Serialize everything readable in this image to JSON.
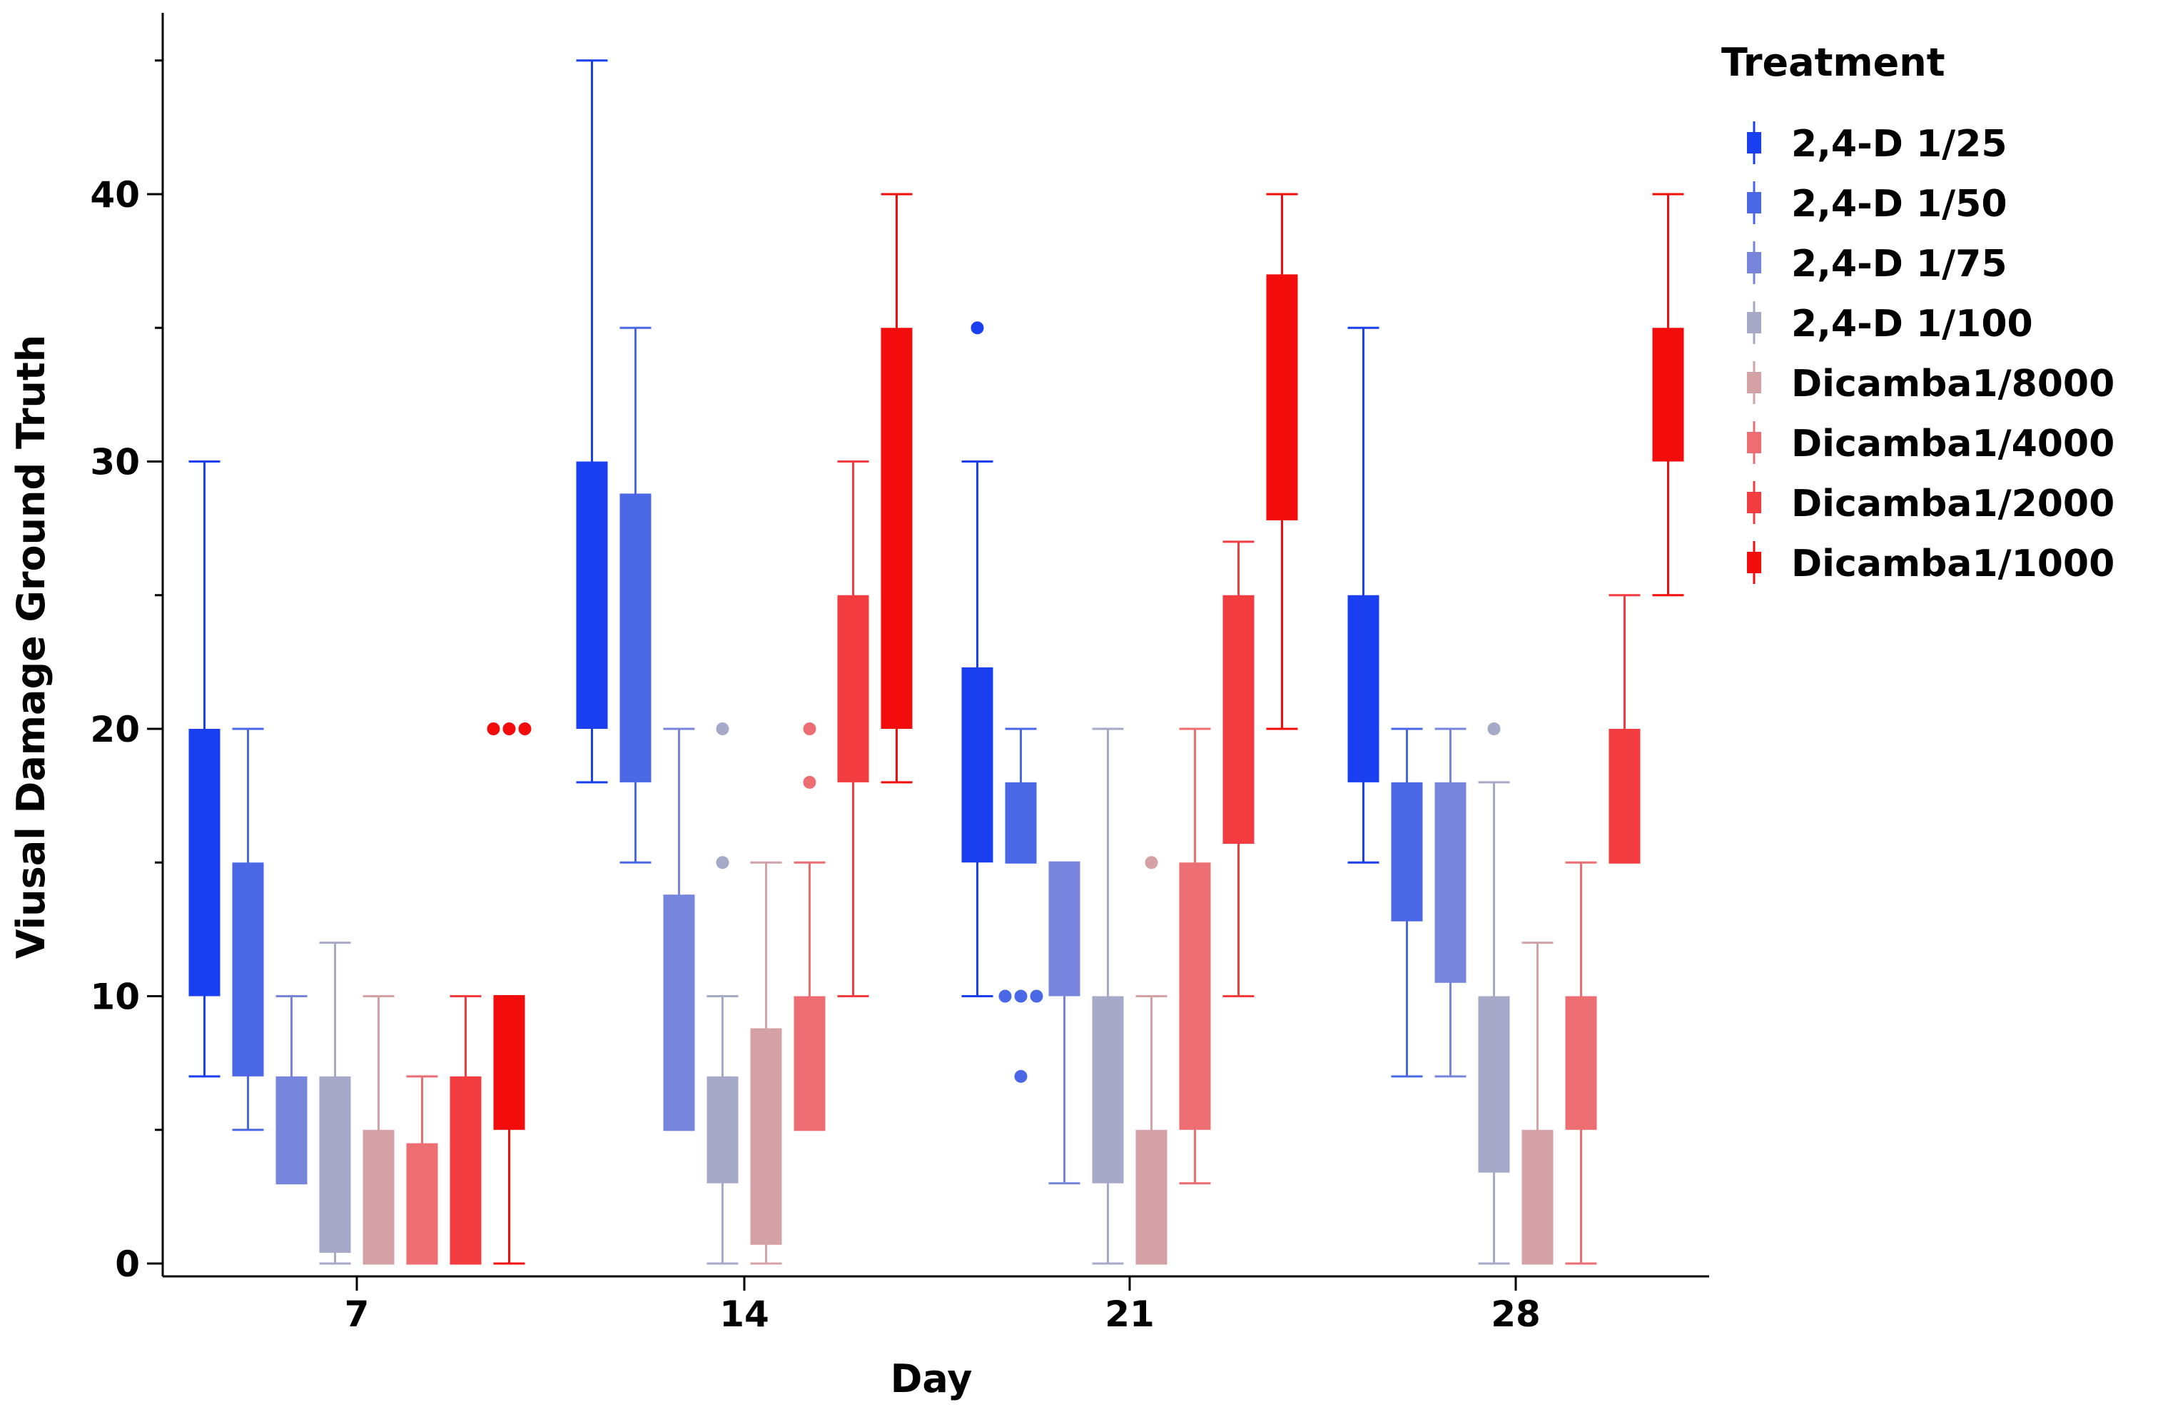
{
  "chart_data": {
    "type": "box",
    "title": "",
    "xlabel": "Day",
    "ylabel": "Viusal Damage Ground Truth",
    "categories": [
      "7",
      "14",
      "21",
      "28"
    ],
    "ylim": [
      -0.5,
      47
    ],
    "yticks": [
      0,
      10,
      20,
      30,
      40
    ],
    "grid": false,
    "legend": {
      "title": "Treatment",
      "position": "right"
    },
    "series": [
      {
        "name": "2,4-D 1/25",
        "color": "#1a3ff0",
        "boxes": [
          {
            "min": 7,
            "q1": 10,
            "q3": 20,
            "max": 30,
            "outliers": []
          },
          {
            "min": 18,
            "q1": 20,
            "q3": 30,
            "max": 45,
            "outliers": []
          },
          {
            "min": 10,
            "q1": 15,
            "q3": 22.3,
            "max": 30,
            "outliers": [
              35
            ]
          },
          {
            "min": 15,
            "q1": 18,
            "q3": 25,
            "max": 35,
            "outliers": []
          }
        ]
      },
      {
        "name": "2,4-D 1/50",
        "color": "#4a68e6",
        "boxes": [
          {
            "min": 5,
            "q1": 7,
            "q3": 15,
            "max": 20,
            "outliers": []
          },
          {
            "min": 15,
            "q1": 18,
            "q3": 28.8,
            "max": 35,
            "outliers": []
          },
          {
            "min": 15,
            "q1": 15,
            "q3": 18,
            "max": 20,
            "outliers": [
              10,
              10,
              10,
              7
            ]
          },
          {
            "min": 7,
            "q1": 12.8,
            "q3": 18,
            "max": 20,
            "outliers": []
          }
        ]
      },
      {
        "name": "2,4-D 1/75",
        "color": "#7786dc",
        "boxes": [
          {
            "min": 3,
            "q1": 3,
            "q3": 7,
            "max": 10,
            "outliers": []
          },
          {
            "min": 5,
            "q1": 5,
            "q3": 13.8,
            "max": 20,
            "outliers": []
          },
          {
            "min": 3,
            "q1": 10,
            "q3": 15,
            "max": 15,
            "outliers": []
          },
          {
            "min": 7,
            "q1": 10.5,
            "q3": 18,
            "max": 20,
            "outliers": []
          }
        ]
      },
      {
        "name": "2,4-D 1/100",
        "color": "#a6aac8",
        "boxes": [
          {
            "min": 0,
            "q1": 0.4,
            "q3": 7,
            "max": 12,
            "outliers": []
          },
          {
            "min": 0,
            "q1": 3,
            "q3": 7,
            "max": 10,
            "outliers": [
              20,
              15
            ]
          },
          {
            "min": 0,
            "q1": 3,
            "q3": 10,
            "max": 20,
            "outliers": []
          },
          {
            "min": 0,
            "q1": 3.4,
            "q3": 10,
            "max": 18,
            "outliers": [
              20
            ]
          }
        ]
      },
      {
        "name": "Dicamba1/8000",
        "color": "#d4a2a6",
        "boxes": [
          {
            "min": 0,
            "q1": 0,
            "q3": 5,
            "max": 10,
            "outliers": []
          },
          {
            "min": 0,
            "q1": 0.7,
            "q3": 8.8,
            "max": 15,
            "outliers": []
          },
          {
            "min": 0,
            "q1": 0,
            "q3": 5,
            "max": 10,
            "outliers": [
              15
            ]
          },
          {
            "min": 0,
            "q1": 0,
            "q3": 5,
            "max": 12,
            "outliers": []
          }
        ]
      },
      {
        "name": "Dicamba1/4000",
        "color": "#ec6e72",
        "boxes": [
          {
            "min": 0,
            "q1": 0,
            "q3": 4.5,
            "max": 7,
            "outliers": []
          },
          {
            "min": 5,
            "q1": 5,
            "q3": 10,
            "max": 15,
            "outliers": [
              20,
              18
            ]
          },
          {
            "min": 3,
            "q1": 5,
            "q3": 15,
            "max": 20,
            "outliers": []
          },
          {
            "min": 0,
            "q1": 5,
            "q3": 10,
            "max": 15,
            "outliers": []
          }
        ]
      },
      {
        "name": "Dicamba1/2000",
        "color": "#f23c40",
        "boxes": [
          {
            "min": 0,
            "q1": 0,
            "q3": 7,
            "max": 10,
            "outliers": []
          },
          {
            "min": 10,
            "q1": 18,
            "q3": 25,
            "max": 30,
            "outliers": []
          },
          {
            "min": 10,
            "q1": 15.7,
            "q3": 25,
            "max": 27,
            "outliers": []
          },
          {
            "min": 15,
            "q1": 15,
            "q3": 20,
            "max": 25,
            "outliers": []
          }
        ]
      },
      {
        "name": "Dicamba1/1000",
        "color": "#f20c0c",
        "boxes": [
          {
            "min": 0,
            "q1": 5,
            "q3": 10,
            "max": 10,
            "outliers": [
              20,
              20,
              20
            ]
          },
          {
            "min": 18,
            "q1": 20,
            "q3": 35,
            "max": 40,
            "outliers": []
          },
          {
            "min": 20,
            "q1": 27.8,
            "q3": 37,
            "max": 40,
            "outliers": []
          },
          {
            "min": 25,
            "q1": 30,
            "q3": 35,
            "max": 40,
            "outliers": []
          }
        ]
      }
    ]
  }
}
